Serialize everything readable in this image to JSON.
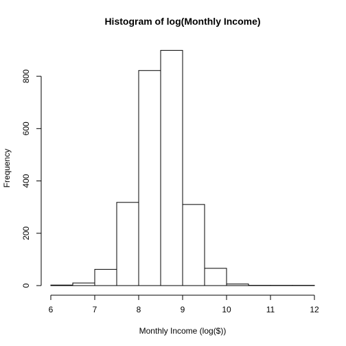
{
  "chart_data": {
    "type": "bar",
    "title": "Histogram of log(Monthly Income)",
    "xlabel": "Monthly Income (log($))",
    "ylabel": "Frequency",
    "bin_edges": [
      6,
      6.5,
      7,
      7.5,
      8,
      8.5,
      9,
      9.5,
      10,
      10.5,
      11,
      11.5,
      12
    ],
    "values": [
      2,
      10,
      62,
      318,
      822,
      899,
      310,
      66,
      6,
      1,
      1,
      1
    ],
    "xlim": [
      6,
      12
    ],
    "ylim": [
      0,
      900
    ],
    "x_ticks": [
      6,
      7,
      8,
      9,
      10,
      11,
      12
    ],
    "y_ticks": [
      0,
      200,
      400,
      600,
      800
    ],
    "grid": false
  }
}
